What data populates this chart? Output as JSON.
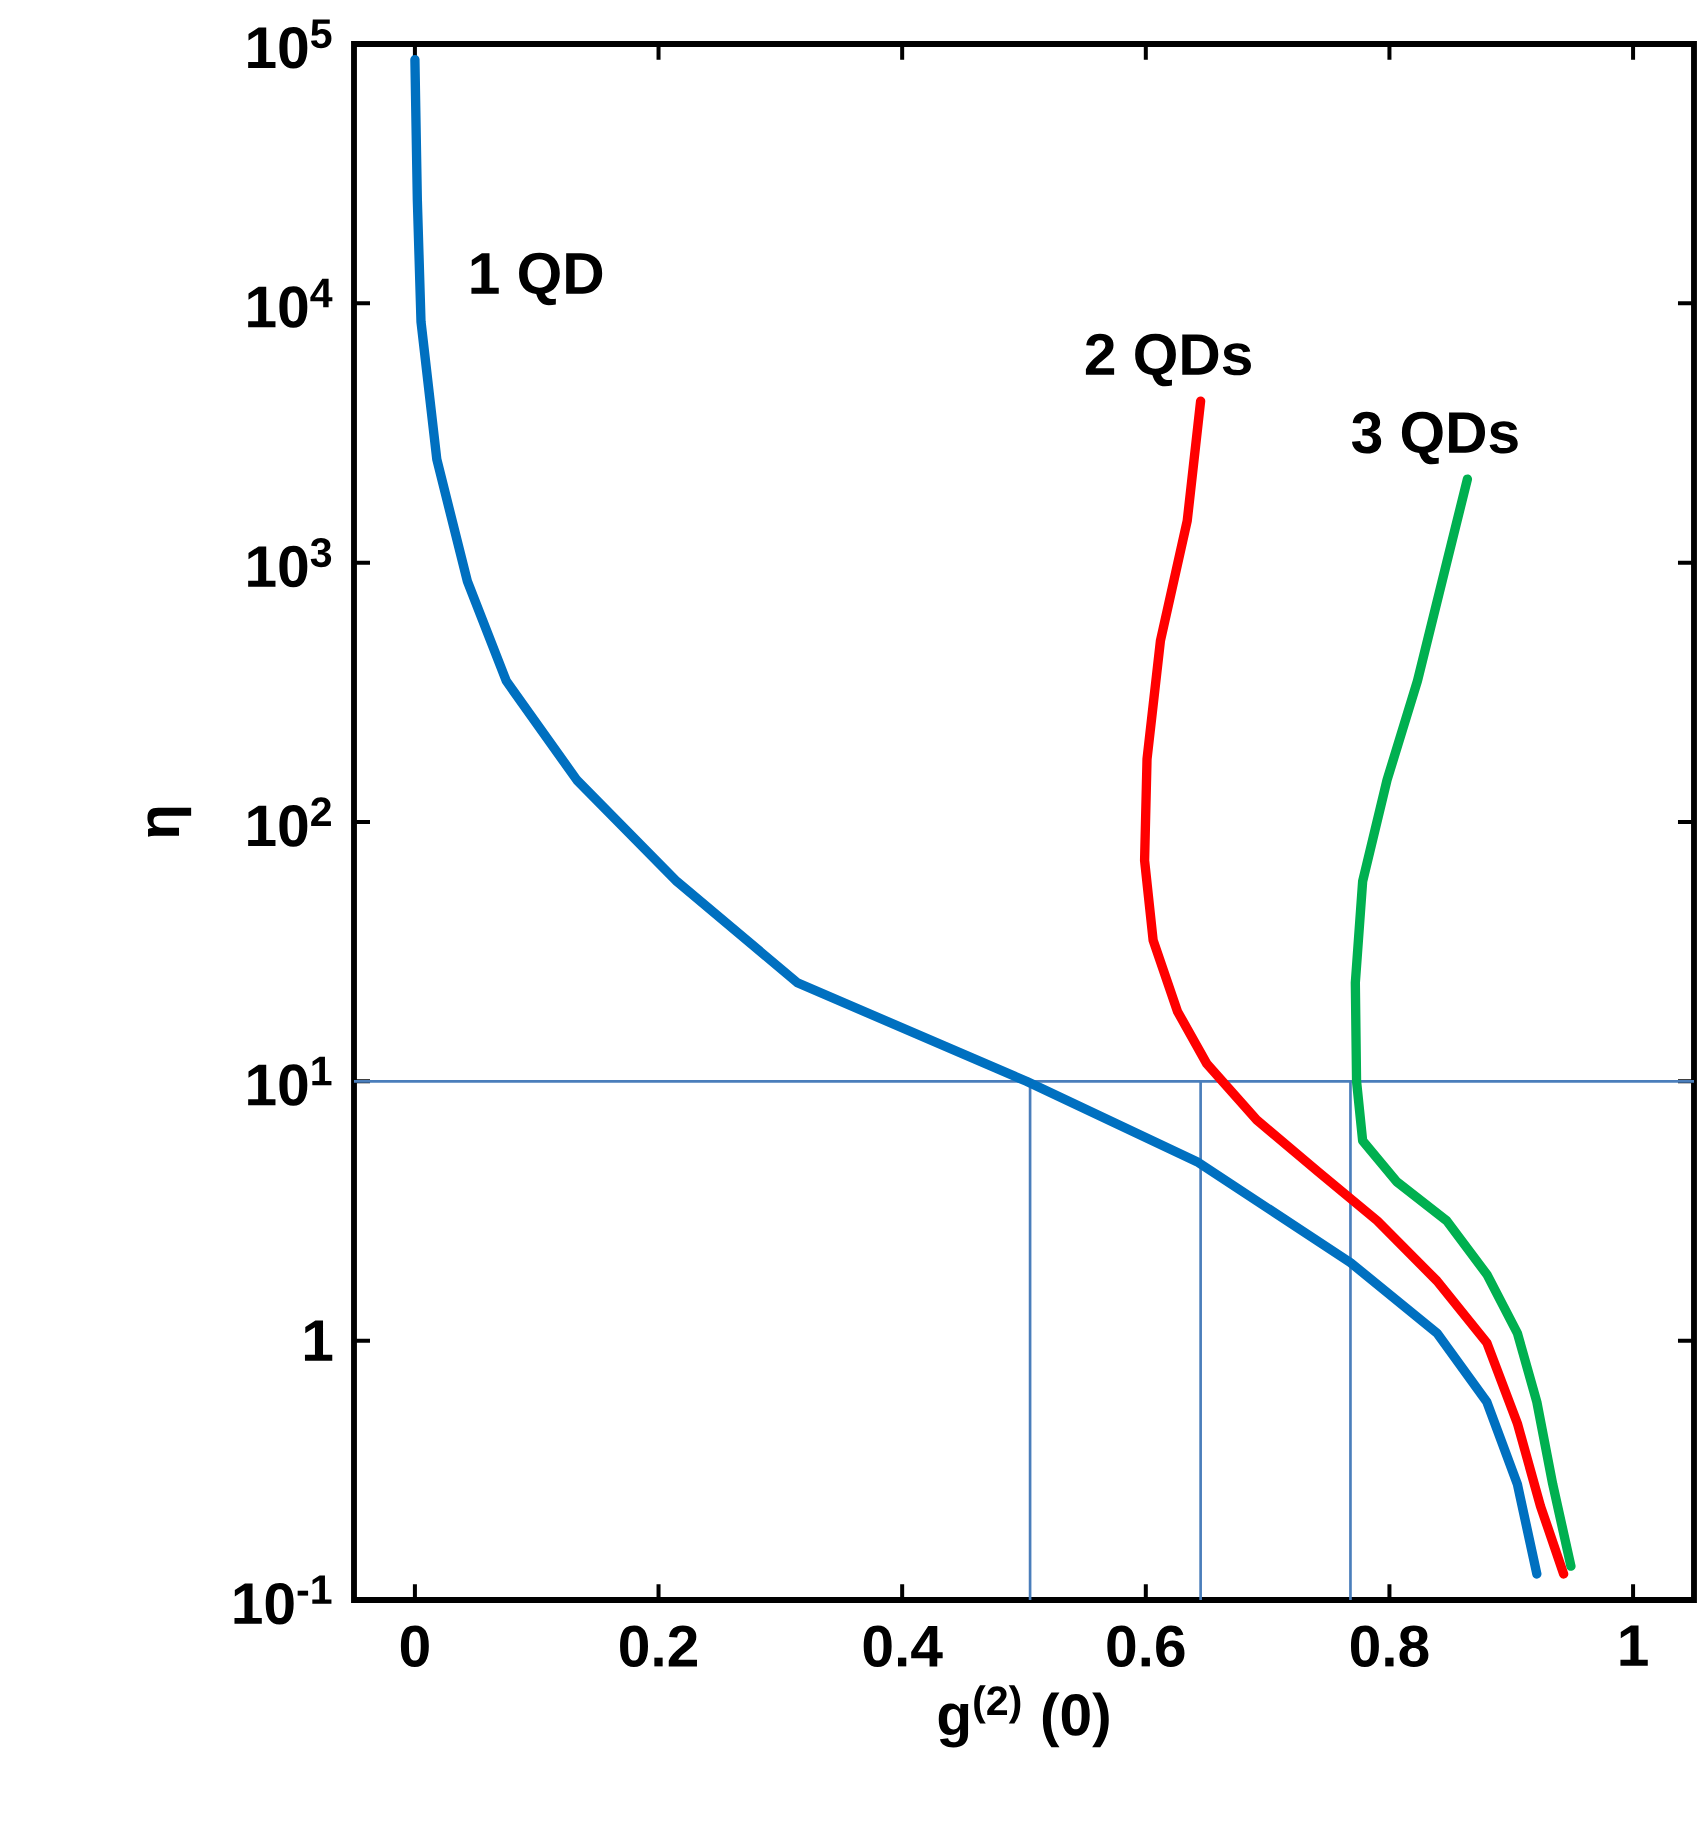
{
  "chart_data": {
    "type": "line",
    "xlabel": "g$^{(2)}$ (0)",
    "ylabel": "η",
    "log": true,
    "grid": false,
    "legend": false,
    "marker": "none",
    "line_style": "solid",
    "xlim": [
      -0.05,
      1.05
    ],
    "ylim": [
      0.1,
      100000
    ],
    "xticks": [
      0,
      0.2,
      0.4,
      0.6,
      0.8,
      1
    ],
    "yticks": [
      {
        "value": 0.1,
        "label": "10$^{-1}$"
      },
      1,
      {
        "value": 10,
        "label": "10$^{1}$"
      },
      {
        "value": 100,
        "label": "10$^{2}$"
      },
      {
        "value": 1000,
        "label": "10$^{3}$"
      },
      {
        "value": 10000,
        "label": "10$^{4}$"
      },
      {
        "value": 100000,
        "label": "10$^{5}$"
      }
    ],
    "series": [
      {
        "name": "1 QD",
        "color": "#0070c0",
        "x": [
          0,
          0.002,
          0.005,
          0.018,
          0.043,
          0.075,
          0.133,
          0.215,
          0.314,
          0.502,
          0.642,
          0.768,
          0.839,
          0.88,
          0.905,
          0.921
        ],
        "values": [
          87000,
          25000,
          8500,
          2500,
          850,
          350,
          145,
          59,
          24,
          10,
          4.9,
          2.0,
          1.07,
          0.58,
          0.28,
          0.126
        ]
      },
      {
        "name": "2 QDs",
        "color": "#ff0000",
        "x": [
          0.645,
          0.634,
          0.612,
          0.601,
          0.599,
          0.606,
          0.626,
          0.65,
          0.691,
          0.741,
          0.79,
          0.839,
          0.88,
          0.905,
          0.924,
          0.943
        ],
        "values": [
          4200,
          1450,
          500,
          175,
          71,
          35,
          18.6,
          11.7,
          7.1,
          4.5,
          2.9,
          1.7,
          0.98,
          0.48,
          0.23,
          0.126
        ]
      },
      {
        "name": "3 QDs",
        "color": "#00b050",
        "x": [
          0.864,
          0.847,
          0.823,
          0.798,
          0.778,
          0.772,
          0.773,
          0.778,
          0.806,
          0.847,
          0.88,
          0.905,
          0.921,
          0.934,
          0.949
        ],
        "values": [
          2100,
          1000,
          350,
          145,
          59,
          24,
          10,
          5.9,
          4.1,
          2.9,
          1.8,
          1.07,
          0.58,
          0.28,
          0.135
        ]
      }
    ],
    "ref_lines": [
      {
        "axis": "y",
        "value": 10,
        "color": "#4a7ebb"
      },
      {
        "axis": "x",
        "value": 0.505,
        "color": "#4a7ebb"
      },
      {
        "axis": "x",
        "value": 0.645,
        "color": "#4a7ebb"
      },
      {
        "axis": "x",
        "value": 0.768,
        "color": "#4a7ebb"
      }
    ]
  }
}
